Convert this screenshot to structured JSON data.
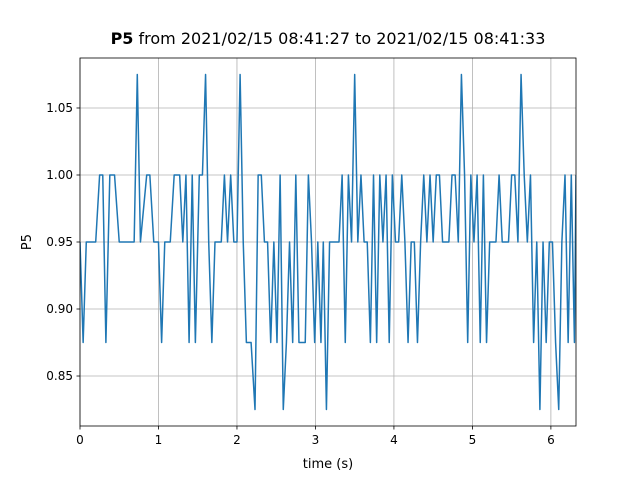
{
  "chart_data": {
    "type": "line",
    "title": {
      "bold": "P5",
      "rest": "from 2021/02/15 08:41:27 to 2021/02/15 08:41:33"
    },
    "xlabel": "time (s)",
    "ylabel": "P5",
    "xlim": [
      0,
      6.32
    ],
    "ylim": [
      0.8127,
      1.0873
    ],
    "xticks": [
      0,
      1,
      2,
      3,
      4,
      5,
      6
    ],
    "yticks": [
      0.85,
      {
        "value": 0.9,
        "label": "0.90"
      },
      0.95,
      {
        "value": 1.0,
        "label": "1.00"
      },
      1.05
    ],
    "grid": true,
    "series": [
      {
        "name": "P5",
        "color": "#1f77b4",
        "x": [
          0,
          0.04,
          0.08,
          0.2,
          0.25,
          0.29,
          0.33,
          0.38,
          0.44,
          0.5,
          0.69,
          0.73,
          0.77,
          0.85,
          0.89,
          0.94,
          1.0,
          1.04,
          1.08,
          1.15,
          1.2,
          1.27,
          1.31,
          1.35,
          1.39,
          1.43,
          1.47,
          1.52,
          1.56,
          1.6,
          1.64,
          1.68,
          1.72,
          1.8,
          1.84,
          1.88,
          1.92,
          1.96,
          2.0,
          2.04,
          2.08,
          2.12,
          2.18,
          2.23,
          2.27,
          2.31,
          2.35,
          2.39,
          2.43,
          2.47,
          2.51,
          2.55,
          2.59,
          2.63,
          2.67,
          2.71,
          2.75,
          2.79,
          2.87,
          2.91,
          2.95,
          2.99,
          3.03,
          3.07,
          3.1,
          3.14,
          3.18,
          3.3,
          3.34,
          3.38,
          3.42,
          3.46,
          3.5,
          3.54,
          3.58,
          3.62,
          3.66,
          3.7,
          3.74,
          3.78,
          3.82,
          3.86,
          3.9,
          3.94,
          3.98,
          4.02,
          4.06,
          4.1,
          4.14,
          4.18,
          4.22,
          4.26,
          4.3,
          4.34,
          4.38,
          4.42,
          4.46,
          4.5,
          4.54,
          4.58,
          4.62,
          4.7,
          4.74,
          4.78,
          4.82,
          4.86,
          4.9,
          4.94,
          4.98,
          5.02,
          5.06,
          5.1,
          5.14,
          5.18,
          5.22,
          5.3,
          5.34,
          5.38,
          5.42,
          5.46,
          5.5,
          5.54,
          5.58,
          5.62,
          5.66,
          5.7,
          5.74,
          5.78,
          5.82,
          5.86,
          5.9,
          5.94,
          5.98,
          6.02,
          6.06,
          6.1,
          6.14,
          6.18,
          6.22,
          6.26,
          6.3,
          6.32
        ],
        "values": [
          0.95,
          0.875,
          0.95,
          0.95,
          1.0,
          1.0,
          0.875,
          1.0,
          1.0,
          0.95,
          0.95,
          1.075,
          0.95,
          1.0,
          1.0,
          0.95,
          0.95,
          0.875,
          0.95,
          0.95,
          1.0,
          1.0,
          0.95,
          1.0,
          0.875,
          1.0,
          0.875,
          1.0,
          1.0,
          1.075,
          0.95,
          0.875,
          0.95,
          0.95,
          1.0,
          0.95,
          1.0,
          0.95,
          0.95,
          1.075,
          0.95,
          0.875,
          0.875,
          0.825,
          1.0,
          1.0,
          0.95,
          0.95,
          0.875,
          0.95,
          0.875,
          1.0,
          0.825,
          0.875,
          0.95,
          0.875,
          1.0,
          0.875,
          0.875,
          1.0,
          0.95,
          0.875,
          0.95,
          0.875,
          0.95,
          0.825,
          0.95,
          0.95,
          1.0,
          0.875,
          1.0,
          0.95,
          1.075,
          0.95,
          1.0,
          0.95,
          0.95,
          0.875,
          1.0,
          0.875,
          1.0,
          0.95,
          1.0,
          0.875,
          1.0,
          0.95,
          0.95,
          1.0,
          0.95,
          0.875,
          0.95,
          0.95,
          0.875,
          0.95,
          1.0,
          0.95,
          1.0,
          0.95,
          1.0,
          1.0,
          0.95,
          0.95,
          1.0,
          1.0,
          0.95,
          1.075,
          1.0,
          0.875,
          1.0,
          0.95,
          1.0,
          0.875,
          1.0,
          0.875,
          0.95,
          0.95,
          1.0,
          0.95,
          0.95,
          0.95,
          1.0,
          1.0,
          0.95,
          1.075,
          1.0,
          0.95,
          1.0,
          0.875,
          0.95,
          0.825,
          0.95,
          0.875,
          0.95,
          0.95,
          0.875,
          0.825,
          0.95,
          1.0,
          0.875,
          1.0,
          0.875,
          1.0
        ]
      }
    ]
  }
}
